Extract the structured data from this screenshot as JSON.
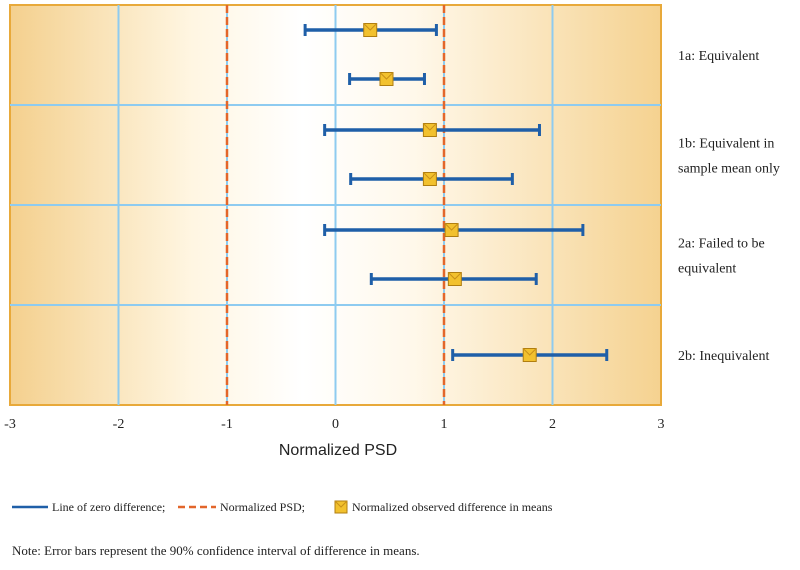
{
  "chart_data": {
    "type": "scatter",
    "title": "",
    "xlabel": "Normalized PSD",
    "ylabel": "",
    "xlim": [
      -3,
      3
    ],
    "xticks": [
      "-3",
      "-2",
      "-1",
      "0",
      "1",
      "2",
      "3"
    ],
    "grid": true,
    "reference_lines": {
      "zero_difference": 0,
      "normalized_psd": [
        -1,
        1
      ]
    },
    "groups": [
      {
        "label": "1a: Equivalent",
        "label_lines": [
          "1a: Equivalent"
        ]
      },
      {
        "label": "1b: Equivalent in sample mean only",
        "label_lines": [
          "1b: Equivalent in",
          "sample mean only"
        ]
      },
      {
        "label": "2a: Failed to be equivalent",
        "label_lines": [
          "2a: Failed to be",
          "equivalent"
        ]
      },
      {
        "label": "2b: Inequivalent",
        "label_lines": [
          "2b: Inequivalent"
        ]
      }
    ],
    "points": [
      {
        "group": "1a: Equivalent",
        "mean": 0.32,
        "ci_low": -0.28,
        "ci_high": 0.93
      },
      {
        "group": "1a: Equivalent",
        "mean": 0.47,
        "ci_low": 0.13,
        "ci_high": 0.82
      },
      {
        "group": "1b: Equivalent in sample mean only",
        "mean": 0.87,
        "ci_low": -0.1,
        "ci_high": 1.88
      },
      {
        "group": "1b: Equivalent in sample mean only",
        "mean": 0.87,
        "ci_low": 0.14,
        "ci_high": 1.63
      },
      {
        "group": "2a: Failed to be equivalent",
        "mean": 1.07,
        "ci_low": -0.1,
        "ci_high": 2.28
      },
      {
        "group": "2a: Failed to be equivalent",
        "mean": 1.1,
        "ci_low": 0.33,
        "ci_high": 1.85
      },
      {
        "group": "2b: Inequivalent",
        "mean": 1.79,
        "ci_low": 1.08,
        "ci_high": 2.5
      }
    ],
    "legend": [
      {
        "key": "zero",
        "label": "Line of zero difference;"
      },
      {
        "key": "psd",
        "label": "Normalized PSD;"
      },
      {
        "key": "mean",
        "label": "Normalized observed difference in means"
      }
    ],
    "legend_position": "bottom",
    "colors": {
      "zero_line": "#1f5fa8",
      "psd_line": "#e2662b",
      "error_bar": "#1f5fa8",
      "marker_fill": "#f2c12e",
      "marker_edge": "#b07e10",
      "grid": "#8ecbf0",
      "panel_border": "#e8a93a",
      "panel_center": "#ffffff",
      "panel_edge": "#f4d08e"
    }
  },
  "note": "Note: Error bars represent the 90% confidence interval of difference in means."
}
